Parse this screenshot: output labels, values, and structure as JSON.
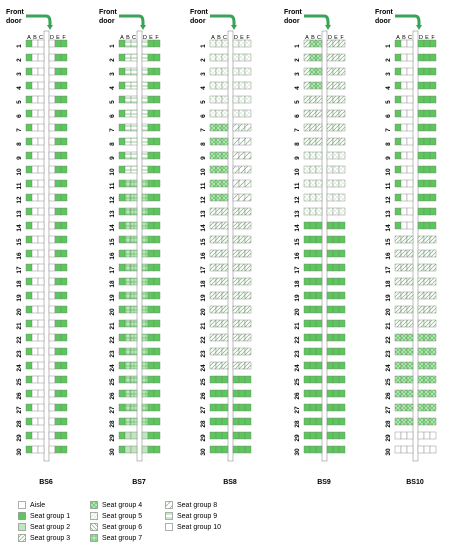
{
  "door_label": [
    "Front",
    "door"
  ],
  "column_letters": [
    "A",
    "B",
    "C",
    "D",
    "E",
    "F"
  ],
  "colors": {
    "green": "#5cc85c",
    "light_green": "#bfe7bf",
    "border": "#7a7a7a"
  },
  "scheme_defs": {
    "aisle": {
      "label": "Aisle",
      "fill": "white",
      "pattern": "none"
    },
    "g1": {
      "label": "Seat group 1",
      "fill": "solid",
      "pattern": "none"
    },
    "g2": {
      "label": "Seat group 2",
      "fill": "light",
      "pattern": "none"
    },
    "g3": {
      "label": "Seat group 3",
      "fill": "white",
      "pattern": "diag-right"
    },
    "g4": {
      "label": "Seat group 4",
      "fill": "light",
      "pattern": "cross-diag"
    },
    "g5": {
      "label": "Seat group 5",
      "fill": "white",
      "pattern": "dots"
    },
    "g6": {
      "label": "Seat group 6",
      "fill": "white",
      "pattern": "diag-left"
    },
    "g7": {
      "label": "Seat group 7",
      "fill": "light",
      "pattern": "grid"
    },
    "g8": {
      "label": "Seat group 8",
      "fill": "white",
      "pattern": "diag-right-sparse"
    },
    "g9": {
      "label": "Seat group 9",
      "fill": "white",
      "pattern": "horizontal"
    },
    "g10": {
      "label": "Seat group 10",
      "fill": "white",
      "pattern": "none"
    }
  },
  "legend": {
    "column_1": [
      "aisle",
      "g1",
      "g2",
      "g3"
    ],
    "column_2": [
      "g4",
      "g5",
      "g6",
      "g7"
    ],
    "column_3": [
      "g8",
      "g9",
      "g10"
    ]
  },
  "layouts": [
    {
      "name": "BS6",
      "rows": 30,
      "groups": [
        {
          "from": 1,
          "to": 30,
          "A": "g1",
          "BC": "g10",
          "D": "g10",
          "EF": "g1"
        }
      ]
    },
    {
      "name": "BS7",
      "rows": 30,
      "groups": [
        {
          "from": 1,
          "to": 10,
          "A": "g1",
          "BC": "g9",
          "D": "g9",
          "EF": "g1"
        },
        {
          "from": 11,
          "to": 28,
          "A": "g1",
          "BC": "g7",
          "D": "g7",
          "EF": "g1"
        },
        {
          "from": 29,
          "to": 30,
          "A": "g1",
          "BC": "g2",
          "D": "g2",
          "EF": "g1"
        }
      ]
    },
    {
      "name": "BS8",
      "rows": 30,
      "groups": [
        {
          "from": 1,
          "to": 6,
          "A": "g5",
          "BC": "g5",
          "D": "g5",
          "EF": "g5"
        },
        {
          "from": 7,
          "to": 12,
          "A": "g4",
          "BC": "g4",
          "D": "g8",
          "EF": "g8"
        },
        {
          "from": 13,
          "to": 24,
          "A": "g3",
          "BC": "g3",
          "D": "g3",
          "EF": "g3"
        },
        {
          "from": 25,
          "to": 30,
          "A": "g1",
          "BC": "g1",
          "D": "g1",
          "EF": "g1"
        }
      ]
    },
    {
      "name": "BS9",
      "rows": 30,
      "groups": [
        {
          "from": 1,
          "to": 4,
          "A": "g3",
          "BC": "g4",
          "D": "g3",
          "EF": "g3"
        },
        {
          "from": 5,
          "to": 8,
          "A": "g3",
          "BC": "g3",
          "D": "g3",
          "EF": "g3"
        },
        {
          "from": 9,
          "to": 13,
          "A": "g5",
          "BC": "g5",
          "D": "g5",
          "EF": "g5"
        },
        {
          "from": 14,
          "to": 30,
          "A": "g1",
          "BC": "g1",
          "D": "g1",
          "EF": "g1"
        }
      ]
    },
    {
      "name": "BS10",
      "rows": 30,
      "groups": [
        {
          "from": 1,
          "to": 14,
          "A": "g1",
          "BC": "g10",
          "D": "g1",
          "EF": "g1"
        },
        {
          "from": 15,
          "to": 21,
          "A": "g3",
          "BC": "g3",
          "D": "g3",
          "EF": "g3"
        },
        {
          "from": 22,
          "to": 28,
          "A": "g4",
          "BC": "g4",
          "D": "g4",
          "EF": "g4"
        },
        {
          "from": 29,
          "to": 30,
          "A": "g10",
          "BC": "g10",
          "D": "g10",
          "EF": "g10"
        }
      ]
    }
  ]
}
